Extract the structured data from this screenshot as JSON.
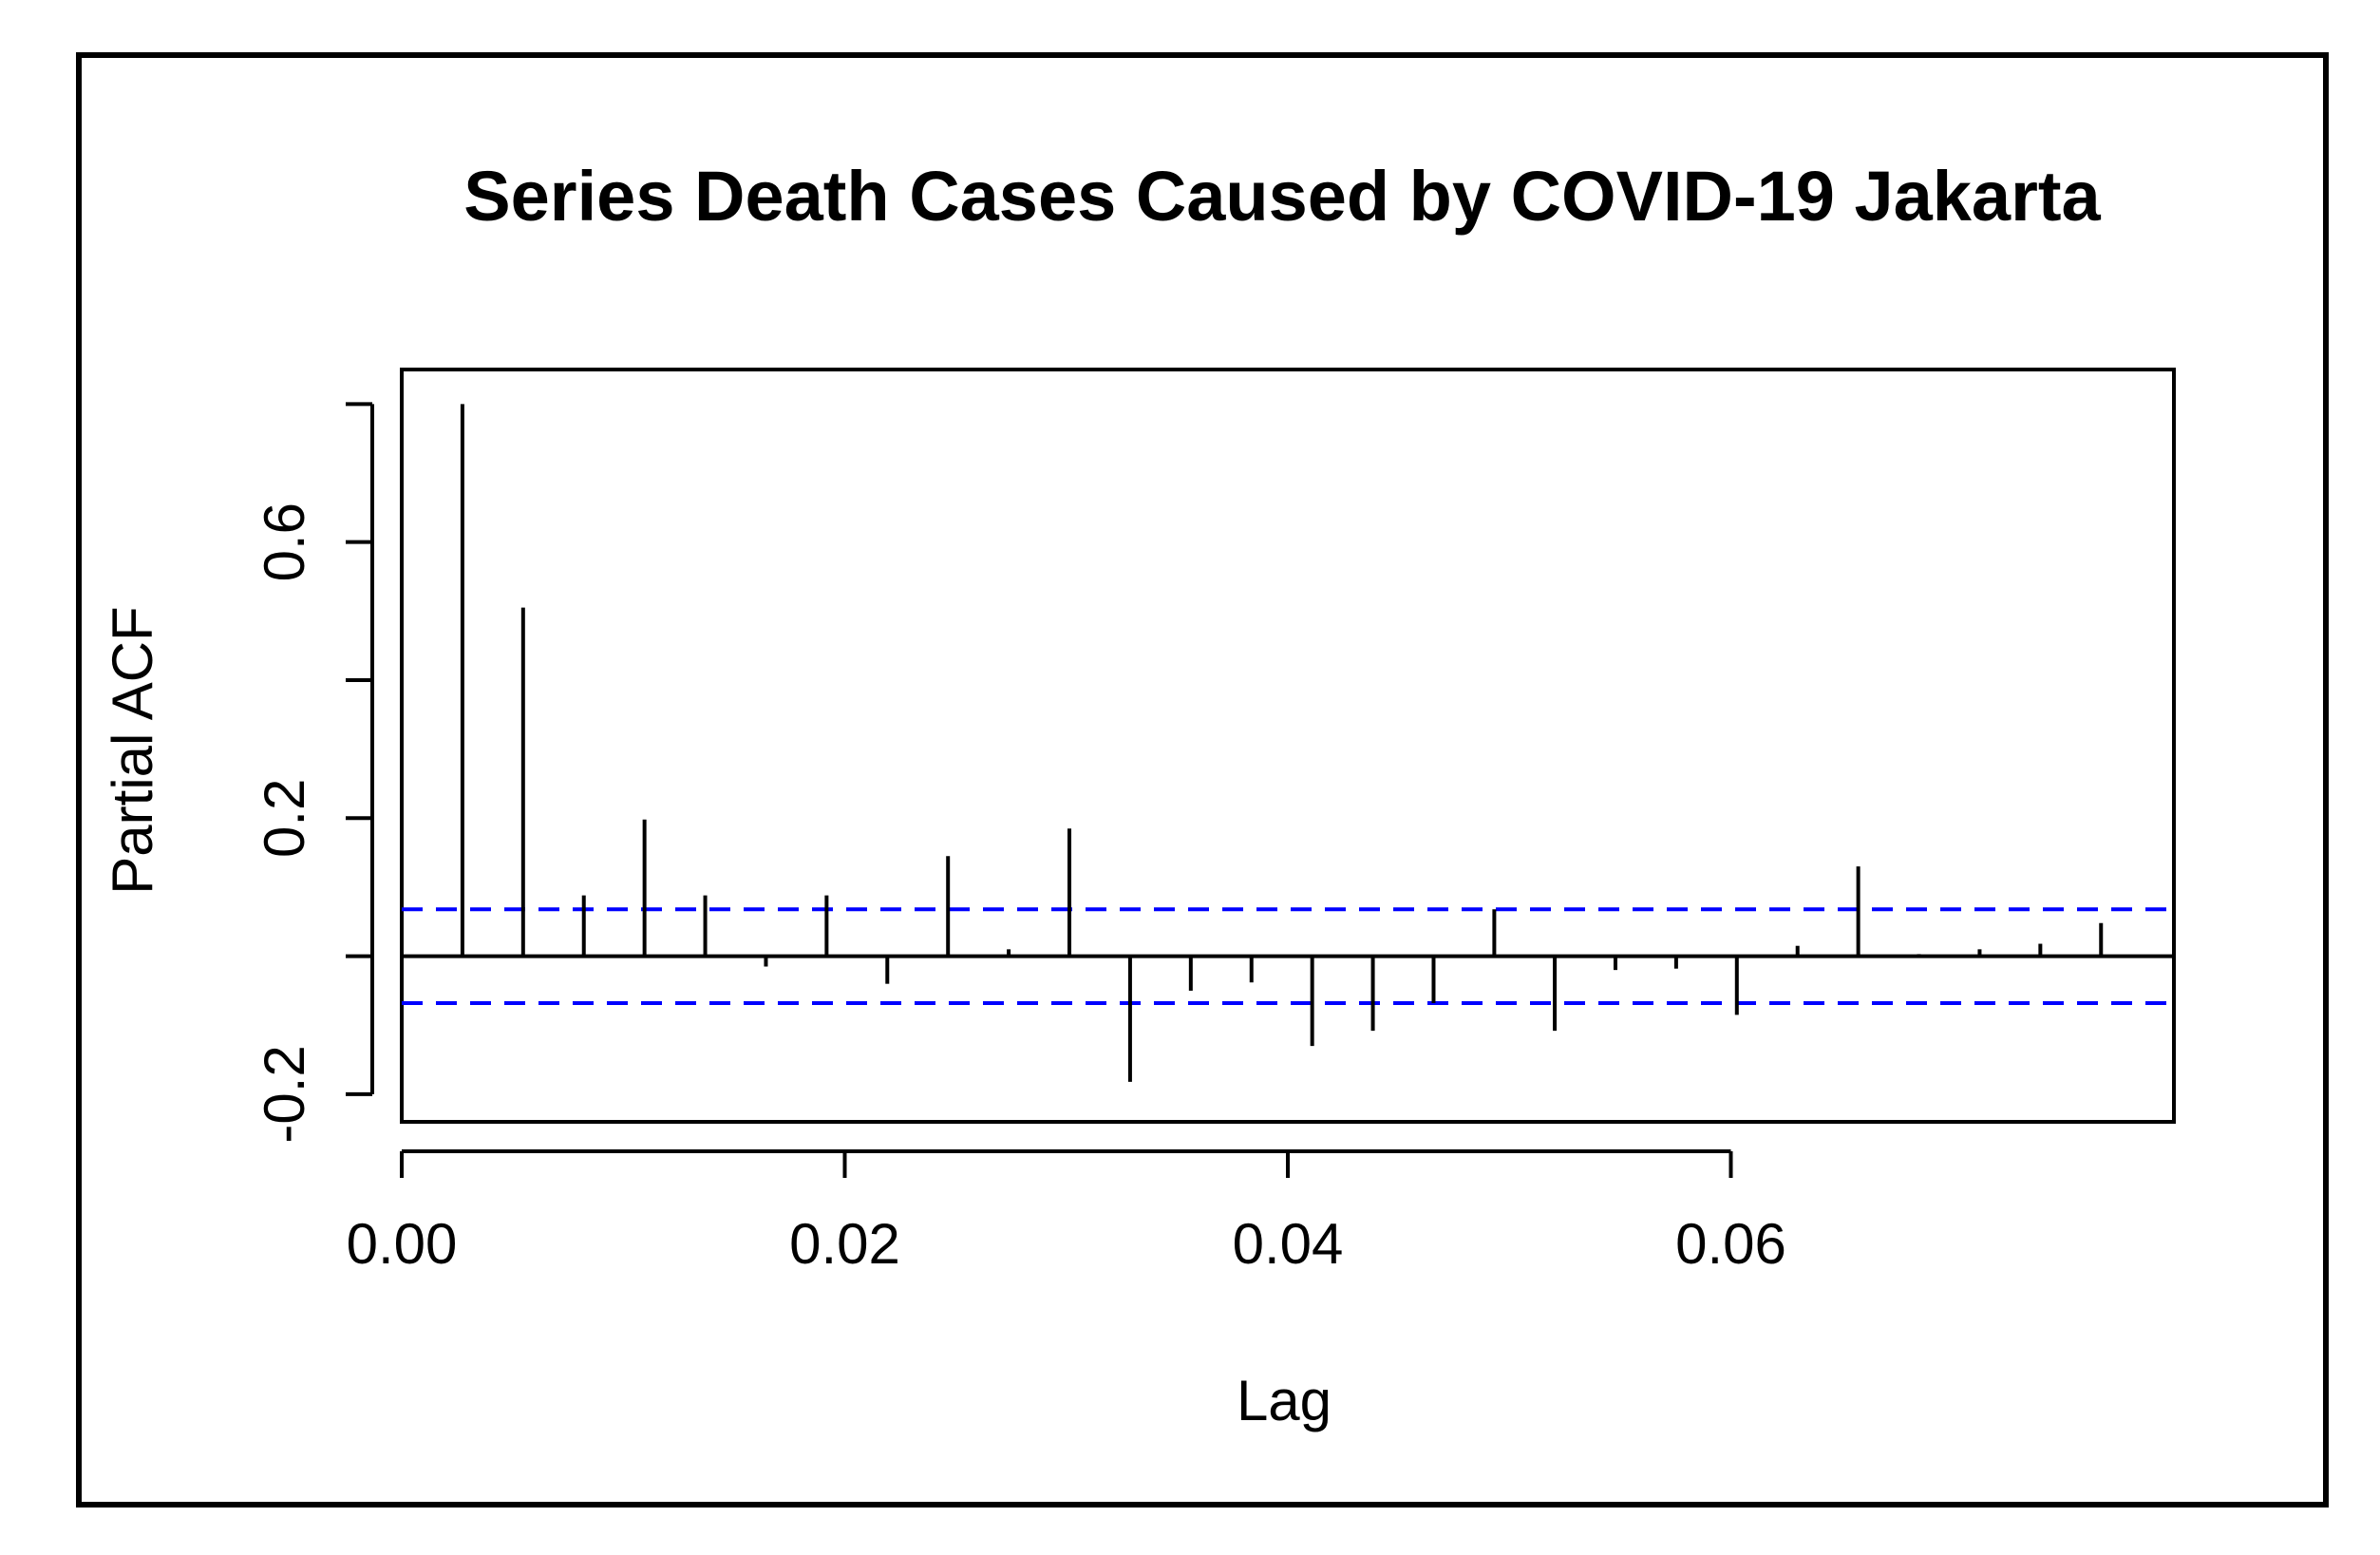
{
  "chart_data": {
    "type": "bar",
    "title": "Series Death Cases Caused by COVID-19 Jakarta",
    "xlabel": "Lag",
    "ylabel": "Partial ACF",
    "xlim": [
      0,
      0.08
    ],
    "ylim": [
      -0.24,
      0.85
    ],
    "xticks": [
      0,
      0.02,
      0.04,
      0.06
    ],
    "xtick_labels": [
      "0.00",
      "0.02",
      "0.04",
      "0.06"
    ],
    "yticks": [
      -0.2,
      0.2,
      0.6
    ],
    "ytick_labels": [
      "-0.2",
      "0.2",
      "0.6"
    ],
    "ytick_marks": [
      -0.2,
      0,
      0.2,
      0.4,
      0.6,
      0.8
    ],
    "confidence_bound": 0.068,
    "colors": {
      "spikes": "#000000",
      "confidence": "#0000ff"
    },
    "x": [
      0.00274,
      0.00548,
      0.00822,
      0.01096,
      0.0137,
      0.01644,
      0.01918,
      0.02192,
      0.02466,
      0.0274,
      0.03014,
      0.03288,
      0.03562,
      0.03836,
      0.0411,
      0.04384,
      0.04658,
      0.04932,
      0.05205,
      0.05479,
      0.05753,
      0.06027,
      0.06301,
      0.06575,
      0.06849,
      0.07123,
      0.07397,
      0.07671
    ],
    "values": [
      0.8,
      0.505,
      0.088,
      0.198,
      0.088,
      -0.015,
      0.088,
      -0.04,
      0.145,
      0.01,
      0.185,
      -0.182,
      -0.05,
      -0.038,
      -0.13,
      -0.108,
      -0.068,
      0.068,
      -0.108,
      -0.02,
      -0.018,
      -0.085,
      0.015,
      0.13,
      0.003,
      0.01,
      0.018,
      0.048
    ]
  }
}
